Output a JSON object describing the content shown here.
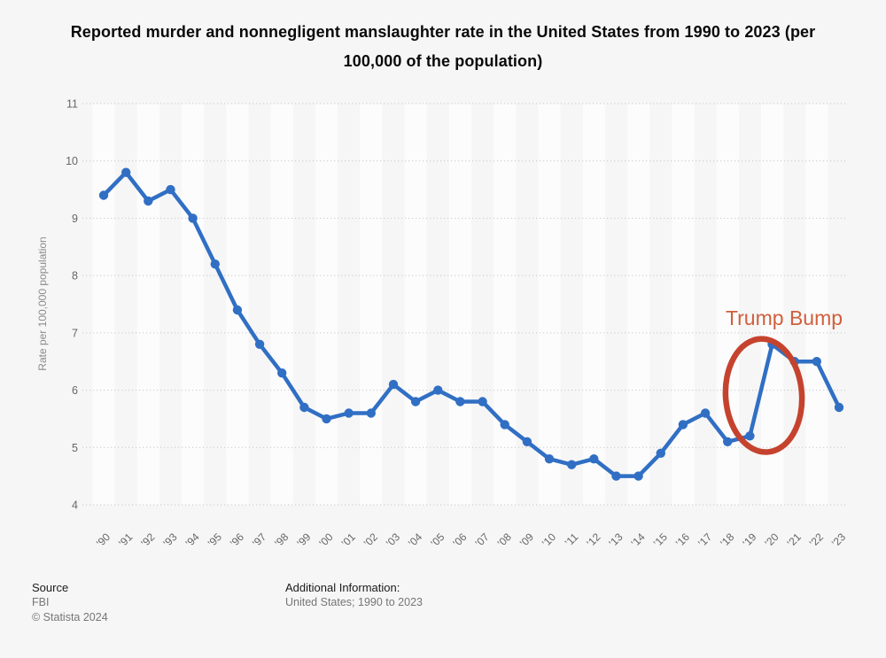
{
  "chart_data": {
    "type": "line",
    "title": "Reported murder and nonnegligent manslaughter rate in the United States from 1990 to 2023 (per 100,000 of the population)",
    "categories": [
      "'90",
      "'91",
      "'92",
      "'93",
      "'94",
      "'95",
      "'96",
      "'97",
      "'98",
      "'99",
      "'00",
      "'01",
      "'02",
      "'03",
      "'04",
      "'05",
      "'06",
      "'07",
      "'08",
      "'09",
      "'10",
      "'11",
      "'12",
      "'13",
      "'14",
      "'15",
      "'16",
      "'17",
      "'18",
      "'19",
      "'20",
      "'21",
      "'22",
      "'23"
    ],
    "values": [
      9.4,
      9.8,
      9.3,
      9.5,
      9.0,
      8.2,
      7.4,
      6.8,
      6.3,
      5.7,
      5.5,
      5.6,
      5.6,
      6.1,
      5.8,
      6.0,
      5.8,
      5.8,
      5.4,
      5.1,
      4.8,
      4.7,
      4.8,
      4.5,
      4.5,
      4.9,
      5.4,
      5.6,
      5.1,
      5.2,
      6.8,
      6.5,
      6.5,
      5.7
    ],
    "xlabel": "",
    "ylabel": "Rate per 100,000 population",
    "ylim": [
      4,
      11
    ],
    "yticks": [
      4,
      5,
      6,
      7,
      8,
      9,
      10,
      11
    ],
    "grid": "horizontal-dotted",
    "legend": "none",
    "line_color": "#306fc4",
    "stripe_color": "#fcfcfc",
    "gridline_color": "#c8c8c8",
    "tick_label_color": "#666666",
    "axis_title_color": "#8c8c8c",
    "annotation": {
      "text": "Trump Bump",
      "text_color": "#d05f3c",
      "circle_color": "#c5432e",
      "circled_years": [
        "'19",
        "'20"
      ]
    }
  },
  "footer": {
    "source_label": "Source",
    "source_value": "FBI",
    "copyright": "© Statista 2024",
    "additional_label": "Additional Information:",
    "additional_value": "United States; 1990 to 2023"
  }
}
